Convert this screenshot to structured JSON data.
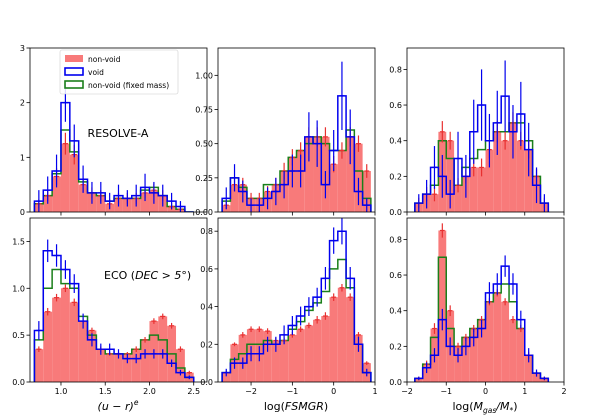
{
  "legend": {
    "location": "top-left of first panel",
    "entries": [
      {
        "label": "non-void",
        "color": "#f87a7a",
        "style": "filled"
      },
      {
        "label": "void",
        "color": "#0000ee",
        "style": "step"
      },
      {
        "label": "non-void (fixed mass)",
        "color": "#1a7f1a",
        "style": "step"
      }
    ]
  },
  "colors": {
    "nonvoid_fill": "#f87a7a",
    "nonvoid_err": "#e83030",
    "void": "#0000ee",
    "fixed_mass": "#1a7f1a"
  },
  "chart_data": [
    {
      "type": "histogram",
      "row": 0,
      "col": 0,
      "annotation": "RESOLVE-A",
      "xlabel": "",
      "xlim": [
        0.65,
        2.65
      ],
      "ylim": [
        0,
        3
      ],
      "xticks": [
        1.0,
        1.5,
        2.0,
        2.5
      ],
      "xtick_labels": [],
      "yticks": [
        0,
        1,
        2,
        3
      ],
      "ytick_labels": [
        "0",
        "1",
        "2",
        "3"
      ],
      "x0": 0.7,
      "bin_width": 0.1,
      "series": [
        {
          "name": "non-void",
          "kind": "filled",
          "values": [
            0.15,
            0.3,
            0.65,
            1.25,
            1.05,
            0.5,
            0.35,
            0.3,
            0.15,
            0.25,
            0.25,
            0.25,
            0.35,
            0.4,
            0.3,
            0.1,
            0.05,
            0.0
          ],
          "errors": [
            0.08,
            0.1,
            0.15,
            0.2,
            0.18,
            0.12,
            0.1,
            0.1,
            0.08,
            0.1,
            0.1,
            0.1,
            0.1,
            0.12,
            0.1,
            0.06,
            0.04,
            0.0
          ]
        },
        {
          "name": "void",
          "kind": "step",
          "values": [
            0.2,
            0.4,
            0.75,
            2.0,
            1.3,
            0.6,
            0.35,
            0.35,
            0.2,
            0.3,
            0.25,
            0.3,
            0.45,
            0.35,
            0.3,
            0.2,
            0.1,
            0.0
          ],
          "errors": [
            0.2,
            0.25,
            0.3,
            0.35,
            0.3,
            0.25,
            0.2,
            0.2,
            0.15,
            0.2,
            0.15,
            0.2,
            0.25,
            0.2,
            0.2,
            0.15,
            0.1,
            0.0
          ]
        },
        {
          "name": "non-void (fixed mass)",
          "kind": "step",
          "values": [
            0.15,
            0.3,
            0.7,
            1.5,
            1.1,
            0.55,
            0.35,
            0.3,
            0.2,
            0.25,
            0.25,
            0.25,
            0.4,
            0.45,
            0.3,
            0.1,
            0.05,
            0.0
          ],
          "errors": []
        }
      ]
    },
    {
      "type": "histogram",
      "row": 0,
      "col": 1,
      "annotation": "",
      "xlabel": "",
      "xlim": [
        -2.8,
        1.0
      ],
      "ylim": [
        0,
        1.2
      ],
      "xticks": [
        -2,
        -1,
        0,
        1
      ],
      "xtick_labels": [],
      "yticks": [
        0,
        0.25,
        0.5,
        0.75,
        1.0
      ],
      "ytick_labels": [
        "0.00",
        "0.25",
        "0.50",
        "0.75",
        "1.00"
      ],
      "x0": -2.7,
      "bin_width": 0.2,
      "series": [
        {
          "name": "non-void",
          "kind": "filled",
          "values": [
            0.05,
            0.2,
            0.2,
            0.1,
            0.1,
            0.15,
            0.2,
            0.3,
            0.4,
            0.45,
            0.55,
            0.55,
            0.55,
            0.35,
            0.45,
            0.55,
            0.5,
            0.3
          ],
          "errors": [
            0.03,
            0.05,
            0.05,
            0.04,
            0.04,
            0.04,
            0.05,
            0.06,
            0.06,
            0.06,
            0.07,
            0.07,
            0.07,
            0.06,
            0.06,
            0.07,
            0.06,
            0.05
          ]
        },
        {
          "name": "void",
          "kind": "step",
          "values": [
            0.1,
            0.25,
            0.15,
            0.05,
            0.05,
            0.1,
            0.15,
            0.2,
            0.3,
            0.3,
            0.55,
            0.5,
            0.2,
            0.45,
            0.85,
            0.55,
            0.15,
            0.05
          ],
          "errors": [
            0.08,
            0.1,
            0.08,
            0.05,
            0.05,
            0.08,
            0.1,
            0.1,
            0.12,
            0.12,
            0.18,
            0.17,
            0.1,
            0.15,
            0.25,
            0.2,
            0.1,
            0.05
          ]
        },
        {
          "name": "non-void (fixed mass)",
          "kind": "step",
          "values": [
            0.08,
            0.25,
            0.18,
            0.1,
            0.1,
            0.2,
            0.2,
            0.3,
            0.4,
            0.45,
            0.5,
            0.55,
            0.5,
            0.45,
            0.45,
            0.6,
            0.3,
            0.1
          ],
          "errors": []
        }
      ]
    },
    {
      "type": "histogram",
      "row": 0,
      "col": 2,
      "annotation": "",
      "xlabel": "",
      "xlim": [
        -2.0,
        2.0
      ],
      "ylim": [
        0,
        0.92
      ],
      "xticks": [
        -2,
        -1,
        0,
        1,
        2
      ],
      "xtick_labels": [],
      "yticks": [
        0,
        0.2,
        0.4,
        0.6,
        0.8
      ],
      "ytick_labels": [
        "0.0",
        "0.2",
        "0.4",
        "0.6",
        "0.8"
      ],
      "x0": -1.8,
      "bin_width": 0.2,
      "series": [
        {
          "name": "non-void",
          "kind": "filled",
          "values": [
            0.05,
            0.1,
            0.1,
            0.45,
            0.4,
            0.15,
            0.2,
            0.25,
            0.25,
            0.35,
            0.45,
            0.4,
            0.5,
            0.4,
            0.35,
            0.2,
            0.05
          ],
          "errors": [
            0.03,
            0.04,
            0.04,
            0.06,
            0.05,
            0.04,
            0.04,
            0.05,
            0.05,
            0.05,
            0.06,
            0.05,
            0.06,
            0.05,
            0.05,
            0.04,
            0.03
          ]
        },
        {
          "name": "void",
          "kind": "step",
          "values": [
            0.05,
            0.1,
            0.25,
            0.2,
            0.1,
            0.3,
            0.2,
            0.45,
            0.6,
            0.4,
            0.5,
            0.65,
            0.45,
            0.55,
            0.35,
            0.15,
            0.05
          ],
          "errors": [
            0.05,
            0.08,
            0.12,
            0.12,
            0.08,
            0.15,
            0.12,
            0.18,
            0.2,
            0.15,
            0.18,
            0.2,
            0.15,
            0.18,
            0.15,
            0.1,
            0.05
          ]
        },
        {
          "name": "non-void (fixed mass)",
          "kind": "step",
          "values": [
            0.05,
            0.1,
            0.15,
            0.4,
            0.3,
            0.15,
            0.25,
            0.3,
            0.35,
            0.4,
            0.45,
            0.45,
            0.5,
            0.5,
            0.4,
            0.2,
            0.05
          ],
          "errors": []
        }
      ]
    },
    {
      "type": "histogram",
      "row": 1,
      "col": 0,
      "annotation": "ECO (DEC > 5°)",
      "xlabel": "(u − r)^e",
      "xlim": [
        0.65,
        2.65
      ],
      "ylim": [
        0,
        1.75
      ],
      "xticks": [
        1.0,
        1.5,
        2.0,
        2.5
      ],
      "xtick_labels": [
        "1.0",
        "1.5",
        "2.0",
        "2.5"
      ],
      "yticks": [
        0,
        0.5,
        1.0,
        1.5
      ],
      "ytick_labels": [
        "0.0",
        "0.5",
        "1.0",
        "1.5"
      ],
      "x0": 0.7,
      "bin_width": 0.1,
      "series": [
        {
          "name": "non-void",
          "kind": "filled",
          "values": [
            0.35,
            0.75,
            0.9,
            1.0,
            0.85,
            0.65,
            0.55,
            0.35,
            0.3,
            0.3,
            0.3,
            0.35,
            0.45,
            0.65,
            0.7,
            0.6,
            0.35,
            0.1
          ],
          "errors": [
            0.03,
            0.04,
            0.04,
            0.04,
            0.04,
            0.03,
            0.03,
            0.03,
            0.02,
            0.02,
            0.02,
            0.03,
            0.03,
            0.03,
            0.03,
            0.03,
            0.03,
            0.02
          ]
        },
        {
          "name": "void",
          "kind": "step",
          "values": [
            0.55,
            1.4,
            1.35,
            1.2,
            1.05,
            0.65,
            0.45,
            0.35,
            0.35,
            0.3,
            0.25,
            0.25,
            0.3,
            0.3,
            0.3,
            0.2,
            0.1,
            0.05
          ],
          "errors": [
            0.1,
            0.12,
            0.12,
            0.1,
            0.1,
            0.08,
            0.07,
            0.06,
            0.06,
            0.05,
            0.05,
            0.05,
            0.05,
            0.05,
            0.05,
            0.04,
            0.03,
            0.02
          ]
        },
        {
          "name": "non-void (fixed mass)",
          "kind": "step",
          "values": [
            0.45,
            1.0,
            1.2,
            1.05,
            1.0,
            0.7,
            0.5,
            0.35,
            0.3,
            0.3,
            0.3,
            0.35,
            0.45,
            0.5,
            0.45,
            0.3,
            0.15,
            0.05
          ],
          "errors": []
        }
      ]
    },
    {
      "type": "histogram",
      "row": 1,
      "col": 1,
      "annotation": "",
      "xlabel": "log(FSMGR)",
      "xlim": [
        -2.8,
        1.0
      ],
      "ylim": [
        0,
        0.87
      ],
      "xticks": [
        -2,
        -1,
        0,
        1
      ],
      "xtick_labels": [
        "−2",
        "−1",
        "0",
        "1"
      ],
      "yticks": [
        0,
        0.2,
        0.4,
        0.6,
        0.8
      ],
      "ytick_labels": [
        "0.0",
        "0.2",
        "0.4",
        "0.6",
        "0.8"
      ],
      "x0": -2.7,
      "bin_width": 0.2,
      "series": [
        {
          "name": "non-void",
          "kind": "filled",
          "values": [
            0.05,
            0.2,
            0.25,
            0.28,
            0.28,
            0.27,
            0.22,
            0.22,
            0.25,
            0.28,
            0.3,
            0.33,
            0.35,
            0.45,
            0.5,
            0.45,
            0.25,
            0.1
          ],
          "errors": [
            0.01,
            0.01,
            0.015,
            0.015,
            0.015,
            0.015,
            0.015,
            0.015,
            0.015,
            0.015,
            0.015,
            0.02,
            0.02,
            0.02,
            0.02,
            0.02,
            0.015,
            0.01
          ]
        },
        {
          "name": "void",
          "kind": "step",
          "values": [
            0.05,
            0.1,
            0.1,
            0.15,
            0.15,
            0.2,
            0.2,
            0.25,
            0.3,
            0.35,
            0.4,
            0.45,
            0.55,
            0.75,
            0.8,
            0.55,
            0.2,
            0.05
          ],
          "errors": [
            0.02,
            0.03,
            0.03,
            0.04,
            0.04,
            0.04,
            0.04,
            0.05,
            0.05,
            0.05,
            0.05,
            0.05,
            0.06,
            0.07,
            0.07,
            0.06,
            0.04,
            0.02
          ]
        },
        {
          "name": "non-void (fixed mass)",
          "kind": "step",
          "values": [
            0.05,
            0.12,
            0.15,
            0.2,
            0.2,
            0.22,
            0.2,
            0.22,
            0.28,
            0.32,
            0.38,
            0.42,
            0.48,
            0.6,
            0.65,
            0.5,
            0.2,
            0.05
          ],
          "errors": []
        }
      ]
    },
    {
      "type": "histogram",
      "row": 1,
      "col": 2,
      "annotation": "",
      "xlabel": "log(M_gas/M_*)",
      "xlim": [
        -2.0,
        2.0
      ],
      "ylim": [
        0,
        0.92
      ],
      "xticks": [
        -2,
        -1,
        0,
        1,
        2
      ],
      "xtick_labels": [
        "−2",
        "−1",
        "0",
        "1",
        "2"
      ],
      "yticks": [
        0,
        0.2,
        0.4,
        0.6,
        0.8
      ],
      "ytick_labels": [
        "0.0",
        "0.2",
        "0.4",
        "0.6",
        "0.8"
      ],
      "x0": -1.8,
      "bin_width": 0.2,
      "series": [
        {
          "name": "non-void",
          "kind": "filled",
          "values": [
            0.02,
            0.1,
            0.3,
            0.85,
            0.4,
            0.2,
            0.25,
            0.3,
            0.35,
            0.45,
            0.5,
            0.45,
            0.35,
            0.3,
            0.15,
            0.05,
            0.02
          ],
          "errors": [
            0.01,
            0.02,
            0.03,
            0.04,
            0.03,
            0.02,
            0.02,
            0.02,
            0.02,
            0.02,
            0.02,
            0.02,
            0.02,
            0.02,
            0.02,
            0.01,
            0.01
          ]
        },
        {
          "name": "void",
          "kind": "step",
          "values": [
            0.02,
            0.08,
            0.15,
            0.35,
            0.2,
            0.15,
            0.2,
            0.25,
            0.3,
            0.5,
            0.55,
            0.65,
            0.55,
            0.35,
            0.15,
            0.05,
            0.02
          ],
          "errors": [
            0.01,
            0.03,
            0.04,
            0.06,
            0.05,
            0.04,
            0.05,
            0.05,
            0.05,
            0.06,
            0.06,
            0.06,
            0.06,
            0.05,
            0.04,
            0.02,
            0.01
          ]
        },
        {
          "name": "non-void (fixed mass)",
          "kind": "step",
          "values": [
            0.02,
            0.1,
            0.25,
            0.7,
            0.3,
            0.2,
            0.25,
            0.3,
            0.35,
            0.45,
            0.5,
            0.55,
            0.45,
            0.3,
            0.15,
            0.05,
            0.02
          ],
          "errors": []
        }
      ]
    }
  ]
}
